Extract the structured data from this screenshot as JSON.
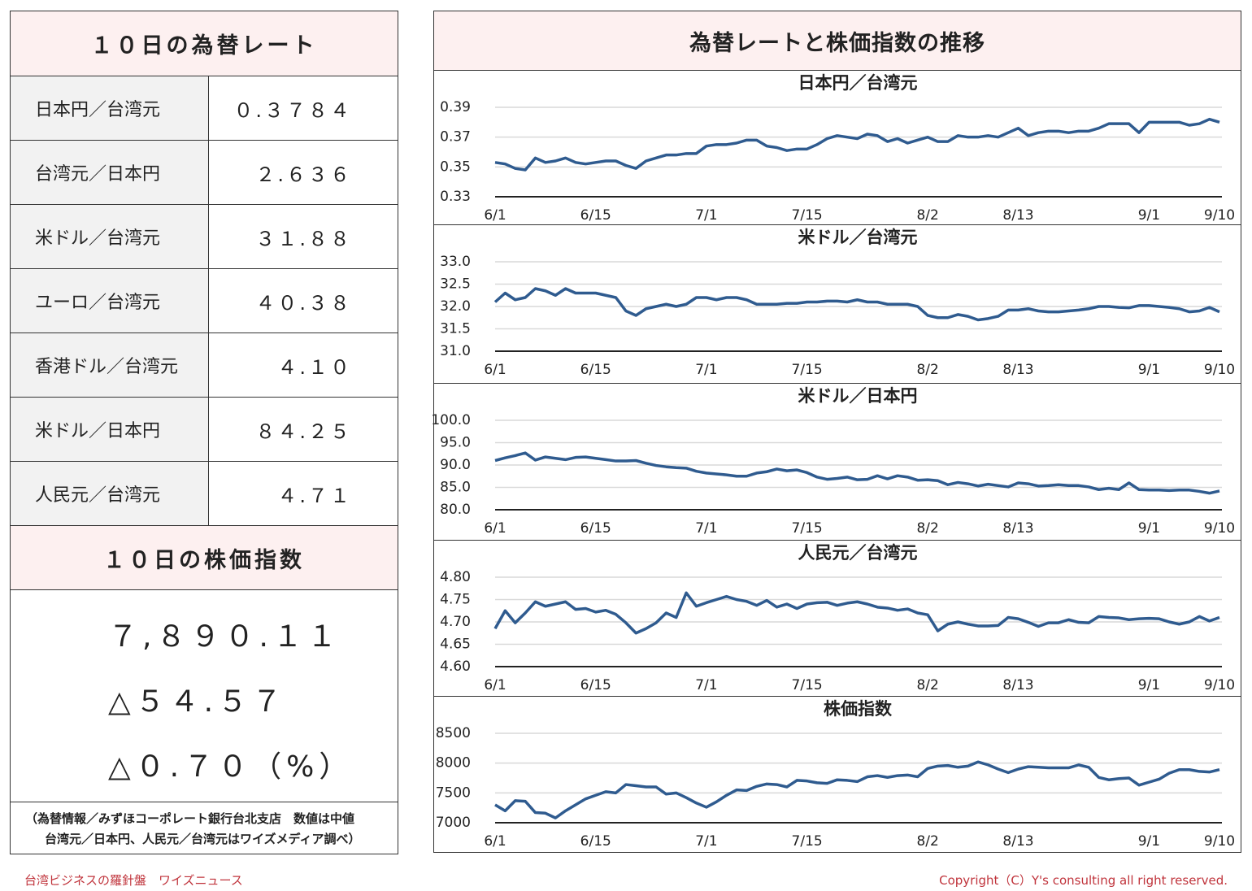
{
  "rates": {
    "title": "１０日の為替レート",
    "rows": [
      [
        "日本円／台湾元",
        "０.３７８４"
      ],
      [
        "台湾元／日本円",
        "２.６３６"
      ],
      [
        "米ドル／台湾元",
        "３１.８８"
      ],
      [
        "ユーロ／台湾元",
        "４０.３８"
      ],
      [
        "香港ドル／台湾元",
        "４.１０"
      ],
      [
        "米ドル／日本円",
        "８４.２５"
      ],
      [
        "人民元／台湾元",
        "４.７１"
      ]
    ]
  },
  "index": {
    "title": "１０日の株価指数",
    "lines": [
      "７,８９０.１１",
      "△５４.５７",
      "△０.７０（%）"
    ]
  },
  "note": [
    "（為替情報／みずほコーポレート銀行台北支店　数値は中値",
    "台湾元／日本円、人民元／台湾元はワイズメディア調べ）"
  ],
  "panel_title": "為替レートと株価指数の推移",
  "footer": {
    "left": "台湾ビジネスの羅針盤　ワイズニュース",
    "right": "Copyright（C）Y's consulting all right reserved."
  },
  "chart_data": [
    {
      "type": "line",
      "title": "日本円／台湾元",
      "color": "#2f5b8f",
      "categories": [
        "6/1",
        null,
        null,
        null,
        null,
        null,
        null,
        null,
        null,
        null,
        "6/15",
        null,
        null,
        null,
        null,
        null,
        null,
        null,
        null,
        null,
        null,
        "7/1",
        null,
        null,
        null,
        null,
        null,
        null,
        null,
        null,
        null,
        "7/15",
        null,
        null,
        null,
        null,
        null,
        null,
        null,
        null,
        null,
        null,
        null,
        "8/2",
        null,
        null,
        null,
        null,
        null,
        null,
        null,
        null,
        "8/13",
        null,
        null,
        null,
        null,
        null,
        null,
        null,
        null,
        null,
        null,
        null,
        null,
        "9/1",
        null,
        null,
        null,
        null,
        null,
        null,
        "9/10"
      ],
      "values": [
        0.353,
        0.352,
        0.349,
        0.348,
        0.356,
        0.353,
        0.354,
        0.356,
        0.353,
        0.352,
        0.353,
        0.354,
        0.354,
        0.351,
        0.349,
        0.354,
        0.356,
        0.358,
        0.358,
        0.359,
        0.359,
        0.364,
        0.365,
        0.365,
        0.366,
        0.368,
        0.368,
        0.364,
        0.363,
        0.361,
        0.362,
        0.362,
        0.365,
        0.369,
        0.371,
        0.37,
        0.369,
        0.372,
        0.371,
        0.367,
        0.369,
        0.366,
        0.368,
        0.37,
        0.367,
        0.367,
        0.371,
        0.37,
        0.37,
        0.371,
        0.37,
        0.373,
        0.376,
        0.371,
        0.373,
        0.374,
        0.374,
        0.373,
        0.374,
        0.374,
        0.376,
        0.379,
        0.379,
        0.379,
        0.373,
        0.38,
        0.38,
        0.38,
        0.38,
        0.378,
        0.379,
        0.382,
        0.38
      ],
      "ylim": [
        0.33,
        0.39
      ],
      "yticks": [
        0.33,
        0.35,
        0.37,
        0.39
      ]
    },
    {
      "type": "line",
      "title": "米ドル／台湾元",
      "color": "#2f5b8f",
      "categories": [
        "6/1",
        null,
        null,
        null,
        null,
        null,
        null,
        null,
        null,
        null,
        "6/15",
        null,
        null,
        null,
        null,
        null,
        null,
        null,
        null,
        null,
        null,
        "7/1",
        null,
        null,
        null,
        null,
        null,
        null,
        null,
        null,
        null,
        "7/15",
        null,
        null,
        null,
        null,
        null,
        null,
        null,
        null,
        null,
        null,
        null,
        "8/2",
        null,
        null,
        null,
        null,
        null,
        null,
        null,
        null,
        "8/13",
        null,
        null,
        null,
        null,
        null,
        null,
        null,
        null,
        null,
        null,
        null,
        null,
        "9/1",
        null,
        null,
        null,
        null,
        null,
        null,
        "9/10"
      ],
      "values": [
        32.1,
        32.3,
        32.15,
        32.2,
        32.4,
        32.35,
        32.25,
        32.4,
        32.3,
        32.3,
        32.3,
        32.25,
        32.2,
        31.9,
        31.8,
        31.95,
        32.0,
        32.05,
        32.0,
        32.05,
        32.2,
        32.2,
        32.15,
        32.2,
        32.2,
        32.15,
        32.05,
        32.05,
        32.05,
        32.07,
        32.07,
        32.1,
        32.1,
        32.12,
        32.12,
        32.1,
        32.15,
        32.1,
        32.1,
        32.05,
        32.05,
        32.05,
        32.0,
        31.8,
        31.75,
        31.75,
        31.82,
        31.78,
        31.7,
        31.73,
        31.78,
        31.92,
        31.92,
        31.95,
        31.9,
        31.88,
        31.88,
        31.9,
        31.92,
        31.95,
        32.0,
        32.0,
        31.98,
        31.97,
        32.02,
        32.02,
        32.0,
        31.98,
        31.95,
        31.88,
        31.9,
        31.98,
        31.88
      ],
      "ylim": [
        31,
        33
      ],
      "yticks": [
        {
          "value": 31,
          "label": "31.0"
        },
        31.5,
        {
          "value": 32,
          "label": "32.0"
        },
        32.5,
        {
          "value": 33,
          "label": "33.0"
        }
      ]
    },
    {
      "type": "line",
      "title": "米ドル／日本円",
      "color": "#2f5b8f",
      "categories": [
        "6/1",
        null,
        null,
        null,
        null,
        null,
        null,
        null,
        null,
        null,
        "6/15",
        null,
        null,
        null,
        null,
        null,
        null,
        null,
        null,
        null,
        null,
        "7/1",
        null,
        null,
        null,
        null,
        null,
        null,
        null,
        null,
        null,
        "7/15",
        null,
        null,
        null,
        null,
        null,
        null,
        null,
        null,
        null,
        null,
        null,
        "8/2",
        null,
        null,
        null,
        null,
        null,
        null,
        null,
        null,
        "8/13",
        null,
        null,
        null,
        null,
        null,
        null,
        null,
        null,
        null,
        null,
        null,
        null,
        "9/1",
        null,
        null,
        null,
        null,
        null,
        null,
        "9/10"
      ],
      "values": [
        91.0,
        91.6,
        92.1,
        92.7,
        91.1,
        91.8,
        91.5,
        91.2,
        91.7,
        91.8,
        91.5,
        91.2,
        90.9,
        90.9,
        91.0,
        90.4,
        89.9,
        89.6,
        89.4,
        89.3,
        88.6,
        88.2,
        88.0,
        87.8,
        87.5,
        87.5,
        88.2,
        88.5,
        89.1,
        88.7,
        88.9,
        88.3,
        87.3,
        86.8,
        87.0,
        87.3,
        86.7,
        86.8,
        87.6,
        86.9,
        87.6,
        87.3,
        86.6,
        86.7,
        86.5,
        85.6,
        86.1,
        85.8,
        85.3,
        85.7,
        85.4,
        85.1,
        86.0,
        85.8,
        85.3,
        85.4,
        85.6,
        85.4,
        85.4,
        85.1,
        84.5,
        84.8,
        84.5,
        86.0,
        84.5,
        84.4,
        84.4,
        84.3,
        84.4,
        84.4,
        84.1,
        83.7,
        84.2
      ],
      "ylim": [
        80,
        100
      ],
      "yticks": [
        {
          "value": 80,
          "label": "80.0"
        },
        {
          "value": 85,
          "label": "85.0"
        },
        {
          "value": 90,
          "label": "90.0"
        },
        {
          "value": 95,
          "label": "95.0"
        },
        {
          "value": 100,
          "label": "100.0"
        }
      ]
    },
    {
      "type": "line",
      "title": "人民元／台湾元",
      "color": "#2f5b8f",
      "categories": [
        "6/1",
        null,
        null,
        null,
        null,
        null,
        null,
        null,
        null,
        null,
        "6/15",
        null,
        null,
        null,
        null,
        null,
        null,
        null,
        null,
        null,
        null,
        "7/1",
        null,
        null,
        null,
        null,
        null,
        null,
        null,
        null,
        null,
        "7/15",
        null,
        null,
        null,
        null,
        null,
        null,
        null,
        null,
        null,
        null,
        null,
        "8/2",
        null,
        null,
        null,
        null,
        null,
        null,
        null,
        null,
        "8/13",
        null,
        null,
        null,
        null,
        null,
        null,
        null,
        null,
        null,
        null,
        null,
        null,
        "9/1",
        null,
        null,
        null,
        null,
        null,
        null,
        "9/10"
      ],
      "values": [
        4.685,
        4.725,
        4.698,
        4.72,
        4.745,
        4.735,
        4.74,
        4.745,
        4.728,
        4.73,
        4.722,
        4.726,
        4.717,
        4.698,
        4.675,
        4.685,
        4.698,
        4.72,
        4.71,
        4.765,
        4.735,
        4.743,
        4.75,
        4.757,
        4.75,
        4.746,
        4.737,
        4.748,
        4.733,
        4.74,
        4.73,
        4.74,
        4.743,
        4.744,
        4.737,
        4.742,
        4.745,
        4.74,
        4.733,
        4.731,
        4.726,
        4.729,
        4.72,
        4.716,
        4.68,
        4.695,
        4.7,
        4.695,
        4.691,
        4.691,
        4.692,
        4.71,
        4.707,
        4.699,
        4.69,
        4.698,
        4.698,
        4.705,
        4.699,
        4.698,
        4.712,
        4.71,
        4.709,
        4.705,
        4.707,
        4.708,
        4.707,
        4.7,
        4.695,
        4.7,
        4.712,
        4.702,
        4.71
      ],
      "ylim": [
        4.6,
        4.8
      ],
      "yticks": [
        {
          "value": 4.6,
          "label": "4.60"
        },
        4.65,
        {
          "value": 4.7,
          "label": "4.70"
        },
        4.75,
        {
          "value": 4.8,
          "label": "4.80"
        }
      ]
    },
    {
      "type": "line",
      "title": "株価指数",
      "color": "#2f5b8f",
      "categories": [
        "6/1",
        null,
        null,
        null,
        null,
        null,
        null,
        null,
        null,
        null,
        "6/15",
        null,
        null,
        null,
        null,
        null,
        null,
        null,
        null,
        null,
        null,
        "7/1",
        null,
        null,
        null,
        null,
        null,
        null,
        null,
        null,
        null,
        "7/15",
        null,
        null,
        null,
        null,
        null,
        null,
        null,
        null,
        null,
        null,
        null,
        "8/2",
        null,
        null,
        null,
        null,
        null,
        null,
        null,
        null,
        "8/13",
        null,
        null,
        null,
        null,
        null,
        null,
        null,
        null,
        null,
        null,
        null,
        null,
        "9/1",
        null,
        null,
        null,
        null,
        null,
        null,
        "9/10"
      ],
      "values": [
        7300,
        7200,
        7370,
        7360,
        7170,
        7160,
        7080,
        7200,
        7300,
        7400,
        7460,
        7520,
        7500,
        7640,
        7620,
        7600,
        7600,
        7480,
        7500,
        7420,
        7330,
        7260,
        7350,
        7460,
        7550,
        7540,
        7610,
        7650,
        7640,
        7600,
        7710,
        7700,
        7670,
        7660,
        7720,
        7710,
        7690,
        7770,
        7790,
        7760,
        7790,
        7800,
        7770,
        7910,
        7950,
        7960,
        7930,
        7950,
        8020,
        7970,
        7900,
        7840,
        7900,
        7940,
        7930,
        7920,
        7920,
        7920,
        7970,
        7930,
        7760,
        7720,
        7740,
        7750,
        7630,
        7680,
        7730,
        7830,
        7890,
        7890,
        7860,
        7850,
        7890
      ],
      "ylim": [
        7000,
        8500
      ],
      "yticks": [
        7000,
        7500,
        8000,
        8500
      ]
    }
  ]
}
